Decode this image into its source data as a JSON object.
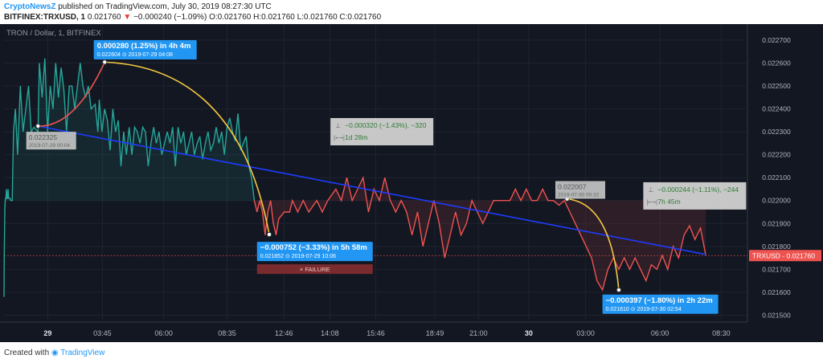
{
  "header": {
    "publisher": "CryptoNewsZ",
    "published_text": "published on TradingView.com, July 30, 2019 08:27:30 UTC",
    "symbol_line": "BITFINEX:TRXUSD, 1",
    "last_price": "0.021760",
    "change_arrow": "▼",
    "change": "−0.000240 (−1.09%)",
    "ohlc": "O:0.021760 H:0.021760 L:0.021760 C:0.021760"
  },
  "footer": {
    "created_with": "Created with",
    "brand": "TradingView"
  },
  "chart_data": {
    "type": "line",
    "title": "TRON / Dollar, 1, BITFINEX",
    "ylim": [
      0.02147,
      0.02277
    ],
    "y_ticks": [
      "0.022700",
      "0.022600",
      "0.022500",
      "0.022400",
      "0.022300",
      "0.022200",
      "0.022100",
      "0.022000",
      "0.021900",
      "0.021800",
      "0.021700",
      "0.021600",
      "0.021500"
    ],
    "x_ticks": [
      "29",
      "03:45",
      "06:00",
      "08:35",
      "12:46",
      "14:08",
      "15:46",
      "18:49",
      "21:00",
      "30",
      "03:00",
      "06:00",
      "08:30"
    ],
    "price_label": "TRXUSD",
    "price_value": "0.021760",
    "last_price": 0.02176,
    "series": [
      {
        "color": "#26a69a",
        "values": [
          [
            0,
            0.02158
          ],
          [
            0.01,
            0.02176
          ],
          [
            0.03,
            0.02196
          ],
          [
            0.05,
            0.02201
          ],
          [
            0.07,
            0.02201
          ],
          [
            0.09,
            0.02205
          ],
          [
            0.11,
            0.02201
          ],
          [
            0.13,
            0.02201
          ],
          [
            0.15,
            0.02205
          ],
          [
            0.17,
            0.02201
          ],
          [
            0.19,
            0.02201
          ],
          [
            0.22,
            0.02201
          ],
          [
            0.25,
            0.022
          ],
          [
            0.3,
            0.022
          ],
          [
            0.35,
            0.0223
          ],
          [
            0.42,
            0.0224
          ],
          [
            0.5,
            0.0222
          ],
          [
            0.6,
            0.0225
          ],
          [
            0.7,
            0.0223
          ],
          [
            0.8,
            0.0224
          ],
          [
            0.9,
            0.0225
          ],
          [
            1.0,
            0.0223
          ],
          [
            1.1,
            0.02232
          ],
          [
            1.25,
            0.0223
          ],
          [
            1.3,
            0.0226
          ],
          [
            1.4,
            0.02245
          ],
          [
            1.5,
            0.02262
          ],
          [
            1.6,
            0.0223
          ],
          [
            1.7,
            0.0225
          ],
          [
            1.8,
            0.0224
          ],
          [
            1.9,
            0.0226
          ],
          [
            2.0,
            0.02245
          ],
          [
            2.1,
            0.02258
          ],
          [
            2.2,
            0.02248
          ],
          [
            2.3,
            0.0223
          ],
          [
            2.4,
            0.0225
          ],
          [
            2.5,
            0.0225
          ],
          [
            2.6,
            0.0224
          ],
          [
            2.7,
            0.0225
          ],
          [
            2.8,
            0.0226
          ],
          [
            2.9,
            0.0225
          ],
          [
            3.0,
            0.02245
          ],
          [
            3.1,
            0.0225
          ],
          [
            3.2,
            0.0224
          ],
          [
            3.35,
            0.02242
          ],
          [
            3.45,
            0.0223
          ],
          [
            3.5,
            0.02244
          ],
          [
            3.6,
            0.0223
          ],
          [
            3.7,
            0.0224
          ],
          [
            3.8,
            0.02235
          ],
          [
            3.9,
            0.02222
          ],
          [
            4.0,
            0.0224
          ],
          [
            4.1,
            0.0223
          ],
          [
            4.2,
            0.02235
          ],
          [
            4.3,
            0.02215
          ],
          [
            4.4,
            0.0223
          ],
          [
            4.5,
            0.0222
          ],
          [
            4.6,
            0.02232
          ],
          [
            4.7,
            0.0222
          ],
          [
            4.8,
            0.02232
          ],
          [
            4.9,
            0.0223
          ],
          [
            5.0,
            0.02225
          ],
          [
            5.1,
            0.02232
          ],
          [
            5.2,
            0.0223
          ],
          [
            5.3,
            0.02215
          ],
          [
            5.4,
            0.02225
          ],
          [
            5.5,
            0.02232
          ],
          [
            5.6,
            0.02225
          ],
          [
            5.7,
            0.0223
          ],
          [
            5.8,
            0.0222
          ],
          [
            5.9,
            0.02225
          ],
          [
            6.0,
            0.0223
          ],
          [
            6.1,
            0.02225
          ],
          [
            6.2,
            0.02232
          ],
          [
            6.3,
            0.02215
          ],
          [
            6.4,
            0.02232
          ],
          [
            6.5,
            0.02225
          ],
          [
            6.6,
            0.0223
          ],
          [
            6.7,
            0.0222
          ],
          [
            6.8,
            0.02225
          ],
          [
            6.9,
            0.0223
          ],
          [
            7.0,
            0.0222
          ],
          [
            7.1,
            0.02225
          ],
          [
            7.2,
            0.02228
          ],
          [
            7.3,
            0.02218
          ],
          [
            7.4,
            0.02225
          ],
          [
            7.5,
            0.0223
          ],
          [
            7.6,
            0.02222
          ],
          [
            7.7,
            0.02225
          ],
          [
            7.8,
            0.02232
          ],
          [
            7.9,
            0.02225
          ],
          [
            8.0,
            0.0223
          ],
          [
            8.1,
            0.0222
          ],
          [
            8.2,
            0.02232
          ],
          [
            8.3,
            0.02236
          ],
          [
            8.4,
            0.0223
          ],
          [
            8.5,
            0.02226
          ],
          [
            8.6,
            0.02238
          ],
          [
            8.7,
            0.02222
          ],
          [
            8.8,
            0.02225
          ],
          [
            8.9,
            0.02228
          ],
          [
            9.0,
            0.02215
          ],
          [
            9.1,
            0.0221
          ],
          [
            9.2,
            0.022
          ]
        ]
      },
      {
        "color": "#ef5350",
        "values": [
          [
            9.2,
            0.022
          ],
          [
            9.3,
            0.02195
          ],
          [
            9.4,
            0.022
          ],
          [
            9.5,
            0.02195
          ],
          [
            9.6,
            0.02185
          ],
          [
            9.7,
            0.02195
          ],
          [
            9.8,
            0.022
          ],
          [
            9.9,
            0.0219
          ],
          [
            10.0,
            0.02185
          ],
          [
            10.1,
            0.02192
          ],
          [
            10.3,
            0.02195
          ],
          [
            10.5,
            0.02195
          ],
          [
            10.6,
            0.022
          ],
          [
            10.8,
            0.02195
          ],
          [
            11.0,
            0.022
          ],
          [
            11.2,
            0.02195
          ],
          [
            11.5,
            0.022
          ],
          [
            11.7,
            0.02195
          ],
          [
            11.9,
            0.022
          ],
          [
            12.2,
            0.02205
          ],
          [
            12.4,
            0.022
          ],
          [
            12.6,
            0.0221
          ],
          [
            12.8,
            0.022
          ],
          [
            13.0,
            0.02205
          ],
          [
            13.2,
            0.0221
          ],
          [
            13.4,
            0.02195
          ],
          [
            13.6,
            0.02205
          ],
          [
            13.8,
            0.022
          ],
          [
            14.0,
            0.0221
          ],
          [
            14.2,
            0.022
          ],
          [
            14.4,
            0.02195
          ],
          [
            14.6,
            0.022
          ],
          [
            14.8,
            0.02195
          ],
          [
            15.0,
            0.02185
          ],
          [
            15.2,
            0.02195
          ],
          [
            15.4,
            0.0218
          ],
          [
            15.6,
            0.0219
          ],
          [
            15.8,
            0.022
          ],
          [
            16.0,
            0.0219
          ],
          [
            16.2,
            0.02175
          ],
          [
            16.4,
            0.02185
          ],
          [
            16.6,
            0.02195
          ],
          [
            16.8,
            0.02185
          ],
          [
            17.0,
            0.0219
          ],
          [
            17.2,
            0.022
          ],
          [
            17.4,
            0.02195
          ],
          [
            17.6,
            0.0219
          ],
          [
            17.8,
            0.02195
          ],
          [
            18.0,
            0.022
          ],
          [
            18.2,
            0.022
          ],
          [
            18.4,
            0.022
          ],
          [
            18.6,
            0.022
          ],
          [
            18.8,
            0.02205
          ],
          [
            19.0,
            0.022
          ],
          [
            19.2,
            0.02205
          ],
          [
            19.4,
            0.022
          ],
          [
            19.6,
            0.022
          ],
          [
            19.8,
            0.02205
          ],
          [
            20.0,
            0.022
          ],
          [
            20.2,
            0.022
          ],
          [
            20.4,
            0.02198
          ],
          [
            20.6,
            0.022
          ],
          [
            20.8,
            0.02195
          ],
          [
            21.0,
            0.0219
          ],
          [
            21.2,
            0.02185
          ],
          [
            21.4,
            0.0218
          ],
          [
            21.6,
            0.02175
          ],
          [
            21.8,
            0.02165
          ],
          [
            22.0,
            0.02161
          ],
          [
            22.2,
            0.0217
          ],
          [
            22.4,
            0.02175
          ],
          [
            22.6,
            0.0217
          ],
          [
            22.8,
            0.02175
          ],
          [
            23.0,
            0.0217
          ],
          [
            23.2,
            0.02175
          ],
          [
            23.4,
            0.0217
          ],
          [
            23.6,
            0.02165
          ],
          [
            23.8,
            0.02172
          ],
          [
            24.0,
            0.0217
          ],
          [
            24.2,
            0.02176
          ],
          [
            24.4,
            0.0217
          ],
          [
            24.6,
            0.0218
          ],
          [
            24.8,
            0.02175
          ],
          [
            25.0,
            0.02185
          ],
          [
            25.2,
            0.02189
          ],
          [
            25.4,
            0.02183
          ],
          [
            25.6,
            0.02188
          ],
          [
            25.8,
            0.02176
          ]
        ]
      }
    ],
    "annotations": [
      {
        "label": "0.000280 (1.25%) in 4h 4m",
        "sub": "0.022604  ⊙ 2019-07-29  04:08",
        "color": "#2196f3"
      },
      {
        "label": "−0.000752 (−3.33%) in 5h 58m",
        "sub": "0.021852  ⊙ 2019-07-29  10:06",
        "color": "#2196f3"
      },
      {
        "label": "−0.000397 (−1.80%) in 2h 22m",
        "sub": "0.021610  ⊙ 2019-07-30  02:54",
        "color": "#2196f3"
      }
    ],
    "failure_label": "× FAILURE",
    "point_labels": [
      {
        "value": "0.022325",
        "time": "2019-07-29 00:04"
      },
      {
        "value": "0.022007",
        "time": "2019-07-30 00:32"
      }
    ],
    "measure_boxes": [
      {
        "line1": "−0.000320 (−1.43%), −320",
        "line2": "1d 28m"
      },
      {
        "line1": "−0.000244 (−1.11%), −244",
        "line2": "7h 45m"
      }
    ],
    "colors": {
      "background": "#131722",
      "up": "#26a69a",
      "down": "#ef5350",
      "trend": "#1e3cff",
      "arc": "#f5c842",
      "label_blue": "#2196f3",
      "failure": "#7a2b2e"
    }
  }
}
